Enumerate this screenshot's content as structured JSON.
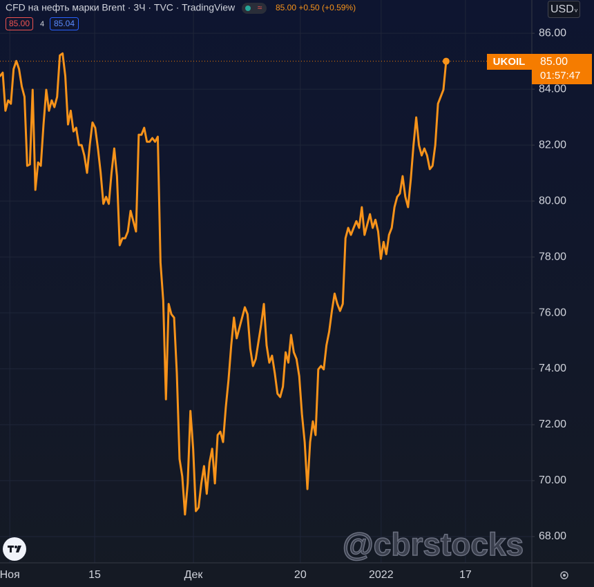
{
  "chart_data": {
    "type": "line",
    "title": "CFD на нефть марки Brent · 3Ч · TVC · TradingView",
    "header_price": "85.00 +0.50 (+0.59%)",
    "bid": "85.00",
    "spread": "4",
    "ask": "85.04",
    "currency": "USD",
    "symbol": "UKOIL",
    "price_label": "85.00",
    "countdown": "01:57:47",
    "watermark": "@cbrstocks",
    "series": [
      {
        "name": "UKOIL",
        "color": "#f7931a",
        "values": [
          84.47,
          84.59,
          83.23,
          83.6,
          83.48,
          84.72,
          85.01,
          84.72,
          84.1,
          83.73,
          81.26,
          81.31,
          83.98,
          80.4,
          81.38,
          81.26,
          82.74,
          83.98,
          83.23,
          83.6,
          83.36,
          83.73,
          85.21,
          85.28,
          84.47,
          82.74,
          83.23,
          82.49,
          82.62,
          82.0,
          82.0,
          81.63,
          81.01,
          82.0,
          82.81,
          82.62,
          81.88,
          81.01,
          79.9,
          80.15,
          79.9,
          81.01,
          81.88,
          80.89,
          78.42,
          78.67,
          78.67,
          78.91,
          79.65,
          79.28,
          78.91,
          82.37,
          82.37,
          82.62,
          82.12,
          82.12,
          82.25,
          82.12,
          82.3,
          77.8,
          76.44,
          72.91,
          76.32,
          75.95,
          75.83,
          73.85,
          70.77,
          70.15,
          68.79,
          69.9,
          72.49,
          71.14,
          68.91,
          69.04,
          69.9,
          70.52,
          69.53,
          70.64,
          71.14,
          69.9,
          71.63,
          71.75,
          71.38,
          72.62,
          73.6,
          74.84,
          75.83,
          75.09,
          75.46,
          75.83,
          76.2,
          75.95,
          74.72,
          74.1,
          74.35,
          74.96,
          75.58,
          76.32,
          74.84,
          74.22,
          74.47,
          73.85,
          73.11,
          72.99,
          73.36,
          74.59,
          74.22,
          75.21,
          74.59,
          74.35,
          73.73,
          72.37,
          71.38,
          69.7,
          71.38,
          72.12,
          71.63,
          73.98,
          74.1,
          73.98,
          74.84,
          75.33,
          76.07,
          76.69,
          76.32,
          76.07,
          76.32,
          78.67,
          79.04,
          78.79,
          79.04,
          79.28,
          79.04,
          79.78,
          78.79,
          79.16,
          79.53,
          79.04,
          79.33,
          78.91,
          77.93,
          78.54,
          78.1,
          78.79,
          79.04,
          79.78,
          80.15,
          80.27,
          80.89,
          80.15,
          79.78,
          80.77,
          82.0,
          82.99,
          82.0,
          81.63,
          81.88,
          81.63,
          81.14,
          81.26,
          82.0,
          83.48,
          83.73,
          83.98,
          85.0
        ]
      }
    ],
    "xlim": [
      0,
      195.5
    ],
    "xticks": [
      {
        "value": 3.6,
        "label": "Ноя"
      },
      {
        "value": 34.8,
        "label": "15"
      },
      {
        "value": 71.1,
        "label": "Дек"
      },
      {
        "value": 110.4,
        "label": "20"
      },
      {
        "value": 140.1,
        "label": "2022"
      },
      {
        "value": 171.1,
        "label": "17"
      }
    ],
    "ylim": [
      67.06,
      87.19
    ],
    "yticks": [
      {
        "value": 68,
        "label": "68.00"
      },
      {
        "value": 70,
        "label": "70.00"
      },
      {
        "value": 72,
        "label": "72.00"
      },
      {
        "value": 74,
        "label": "74.00"
      },
      {
        "value": 76,
        "label": "76.00"
      },
      {
        "value": 78,
        "label": "78.00"
      },
      {
        "value": 80,
        "label": "80.00"
      },
      {
        "value": 82,
        "label": "82.00"
      },
      {
        "value": 84,
        "label": "84.00"
      },
      {
        "value": 86,
        "label": "86.00"
      }
    ],
    "grid": true
  }
}
